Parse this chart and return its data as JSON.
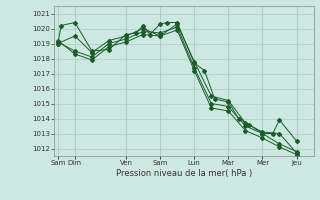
{
  "bg_color": "#cce8e0",
  "grid_color": "#aaccc4",
  "line_color": "#1a5c2a",
  "xlabel": "Pression niveau de la mer( hPa )",
  "ylim": [
    1011.5,
    1021.5
  ],
  "yticks": [
    1012,
    1013,
    1014,
    1015,
    1016,
    1017,
    1018,
    1019,
    1020,
    1021
  ],
  "x_tick_positions": [
    0,
    0.5,
    2,
    3,
    4,
    5,
    6,
    7
  ],
  "x_labels": [
    "Sam",
    "Dim",
    "Ven",
    "Sam",
    "Lun",
    "Mar",
    "Mer",
    "Jeu"
  ],
  "xlim": [
    -0.1,
    7.5
  ],
  "series": [
    {
      "x": [
        0.0,
        0.1,
        0.5,
        1.0,
        1.5,
        2.0,
        2.3,
        2.5,
        2.7,
        3.0,
        3.2,
        3.5,
        4.0,
        4.3,
        4.6,
        5.0,
        5.3,
        5.6,
        6.0,
        6.3,
        6.5,
        7.0
      ],
      "y": [
        1019.0,
        1020.2,
        1020.4,
        1018.5,
        1018.6,
        1019.6,
        1019.7,
        1020.2,
        1019.6,
        1020.3,
        1020.4,
        1020.4,
        1017.7,
        1017.2,
        1015.3,
        1015.1,
        1014.0,
        1013.6,
        1013.0,
        1013.0,
        1013.9,
        1012.5
      ]
    },
    {
      "x": [
        0.0,
        0.5,
        1.0,
        1.5,
        2.0,
        2.5,
        3.0,
        3.5,
        4.0,
        4.5,
        5.0,
        5.5,
        6.0,
        6.5,
        7.0
      ],
      "y": [
        1019.0,
        1019.5,
        1018.4,
        1019.2,
        1019.5,
        1020.0,
        1019.5,
        1020.3,
        1017.8,
        1015.5,
        1015.2,
        1013.7,
        1013.1,
        1013.0,
        1011.7
      ]
    },
    {
      "x": [
        0.0,
        0.5,
        1.0,
        1.5,
        2.0,
        2.5,
        3.0,
        3.5,
        4.0,
        4.5,
        5.0,
        5.5,
        6.0,
        6.5,
        7.0
      ],
      "y": [
        1019.1,
        1018.5,
        1018.1,
        1019.0,
        1019.3,
        1019.8,
        1019.7,
        1020.1,
        1017.4,
        1015.0,
        1014.8,
        1013.5,
        1013.0,
        1012.3,
        1011.8
      ]
    },
    {
      "x": [
        0.0,
        0.5,
        1.0,
        1.5,
        2.0,
        2.5,
        3.0,
        3.5,
        4.0,
        4.5,
        5.0,
        5.5,
        6.0,
        6.5,
        7.0
      ],
      "y": [
        1019.2,
        1018.3,
        1017.9,
        1018.8,
        1019.1,
        1019.6,
        1019.5,
        1019.9,
        1017.2,
        1014.7,
        1014.5,
        1013.2,
        1012.7,
        1012.1,
        1011.6
      ]
    }
  ]
}
